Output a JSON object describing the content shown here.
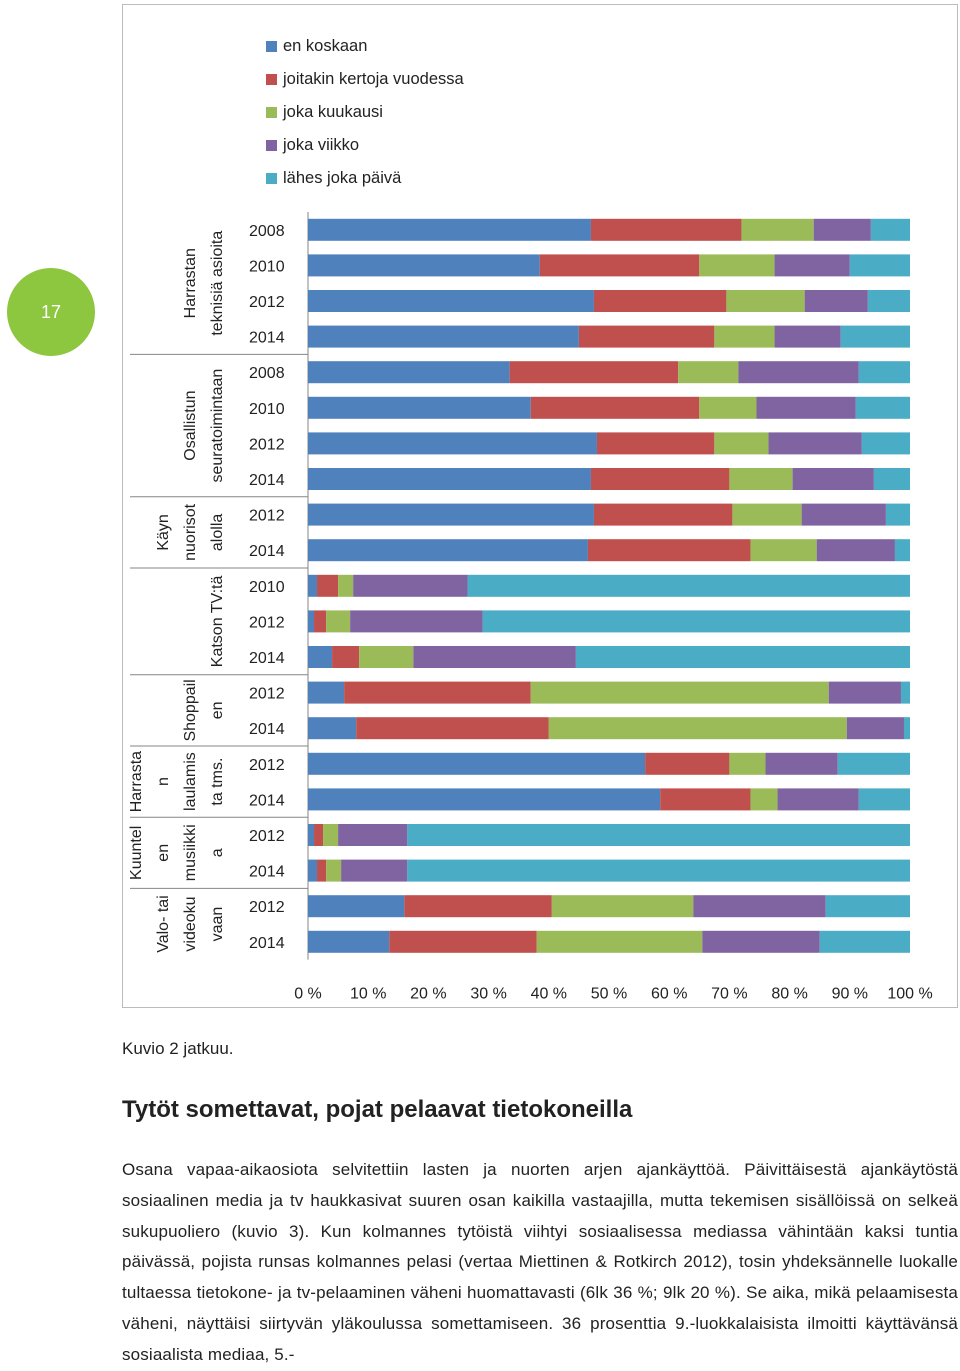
{
  "page_number": "17",
  "colors": {
    "badge": "#8dc63f"
  },
  "chart_data": {
    "type": "bar",
    "orientation": "horizontal",
    "stacked": "percent",
    "legend": {
      "placement": "top",
      "entries": [
        "en koskaan",
        "joitakin kertoja vuodessa",
        "joka kuukausi",
        "joka viikko",
        "lähes joka päivä"
      ]
    },
    "colors": [
      "#4f81bd",
      "#c0504d",
      "#9bbb59",
      "#8064a2",
      "#4bacc6"
    ],
    "x_ticks": [
      "0 %",
      "10 %",
      "20 %",
      "30 %",
      "40 %",
      "50 %",
      "60 %",
      "70 %",
      "80 %",
      "90 %",
      "100 %"
    ],
    "xlim": [
      0,
      100
    ],
    "grid": false,
    "groups": [
      {
        "label_lines": [
          "Harrastan",
          "teknisiä asioita"
        ],
        "years": [
          "2008",
          "2010",
          "2012",
          "2014"
        ]
      },
      {
        "label_lines": [
          "Osallistun",
          "seuratoimintaan"
        ],
        "years": [
          "2008",
          "2010",
          "2012",
          "2014"
        ]
      },
      {
        "label_lines": [
          "Käyn",
          "nuorisot",
          "alolla"
        ],
        "years": [
          "2012",
          "2014"
        ]
      },
      {
        "label_lines": [
          "Katson TV:tä"
        ],
        "years": [
          "2010",
          "2012",
          "2014"
        ]
      },
      {
        "label_lines": [
          "Shoppail",
          "en"
        ],
        "years": [
          "2012",
          "2014"
        ]
      },
      {
        "label_lines": [
          "Harrasta",
          "n",
          "laulamis",
          "ta tms."
        ],
        "years": [
          "2012",
          "2014"
        ]
      },
      {
        "label_lines": [
          "Kuuntel",
          "en",
          "musiikki",
          "a"
        ],
        "years": [
          "2012",
          "2014"
        ]
      },
      {
        "label_lines": [
          "Valo- tai",
          "videoku",
          "vaan"
        ],
        "years": [
          "2012",
          "2014"
        ]
      }
    ],
    "values": [
      [
        47,
        25,
        12,
        9.5,
        6.5
      ],
      [
        38.5,
        26.5,
        12.5,
        12.5,
        10
      ],
      [
        47.5,
        22,
        13,
        10.5,
        7
      ],
      [
        45,
        22.5,
        10,
        11,
        11.5
      ],
      [
        33.5,
        28,
        10,
        20,
        8.5
      ],
      [
        37,
        28,
        9.5,
        16.5,
        9
      ],
      [
        48,
        19.5,
        9,
        15.5,
        8
      ],
      [
        47,
        23,
        10.5,
        13.5,
        6
      ],
      [
        47.5,
        23,
        11.5,
        14,
        4
      ],
      [
        46.5,
        27,
        11,
        13,
        2.5
      ],
      [
        1.5,
        3.5,
        2.5,
        19,
        73.5
      ],
      [
        1,
        2,
        4,
        22,
        71
      ],
      [
        4,
        4.5,
        9,
        27,
        55.5
      ],
      [
        6,
        31,
        49.5,
        12,
        1.5
      ],
      [
        8,
        32,
        49.5,
        9.5,
        1
      ],
      [
        56,
        14,
        6,
        12,
        12
      ],
      [
        58.5,
        15,
        4.5,
        13.5,
        8.5
      ],
      [
        1,
        1.5,
        2.5,
        11.5,
        83.5
      ],
      [
        1.5,
        1.5,
        2.5,
        11,
        83.5
      ],
      [
        16,
        24.5,
        23.5,
        22,
        14
      ],
      [
        13.5,
        24.5,
        27.5,
        19.5,
        15
      ]
    ]
  },
  "caption": "Kuvio 2 jatkuu.",
  "heading": "Tytöt somettavat, pojat pelaavat tietokoneilla",
  "paragraph": "Osana vapaa-aikaosiota selvitettiin lasten ja nuorten arjen ajankäyttöä. Päivittäisestä ajankäytöstä sosiaalinen media ja tv haukkasivat suuren osan kaikilla vastaajilla, mutta tekemisen sisällöissä on selkeä sukupuoliero (kuvio 3). Kun kolmannes tytöistä viihtyi sosiaalisessa mediassa vähintään kaksi tuntia päivässä, pojista runsas kolmannes pelasi (vertaa Miettinen & Rotkirch 2012), tosin yhdeksännelle luokalle tultaessa tietokone- ja tv-pelaaminen väheni huomattavasti (6lk 36 %; 9lk 20 %). Se aika, mikä pelaamisesta väheni, näyttäisi siirtyvän yläkoulussa somettamiseen. 36 prosenttia 9.-luokkalaisista ilmoitti käyttävänsä sosiaalista mediaa, 5.-"
}
